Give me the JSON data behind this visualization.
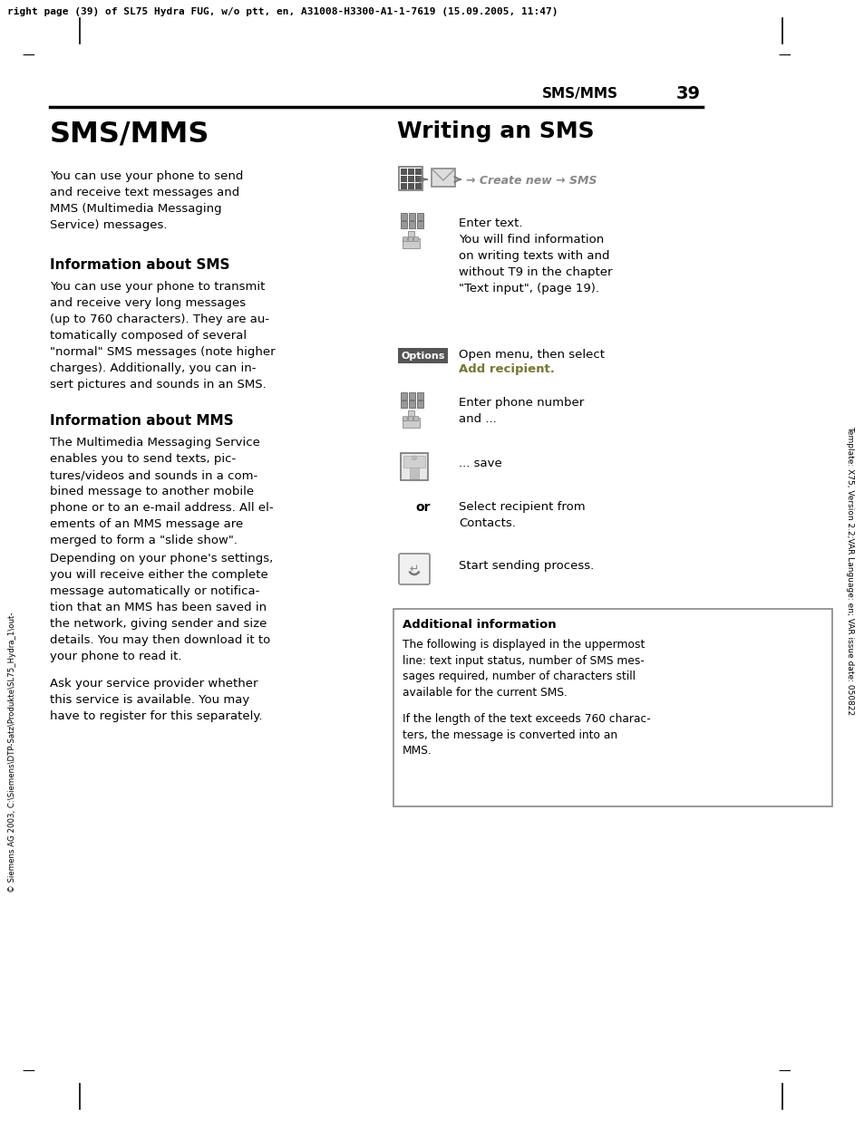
{
  "bg_color": "#ffffff",
  "header_text": "right page (39) of SL75 Hydra FUG, w/o ptt, en, A31008-H3300-A1-1-7619 (15.09.2005, 11:47)",
  "page_section": "SMS/MMS",
  "page_number": "39",
  "rot_right": "Template: X75, Version 2.2;VAR Language: en; VAR issue date: 050822",
  "rot_left": "© Siemens AG 2003, C:\\Siemens\\DTP-Satz\\Produkte\\SL75_Hydra_1\\out-",
  "main_title": "SMS/MMS",
  "intro": "You can use your phone to send\nand receive text messages and\nMMS (​Multimedia ​Messaging\n​Service) messages.",
  "s1_head": "Information about SMS",
  "s1_body": "You can use your phone to transmit\nand receive very long messages\n(up to 760 characters). They are au-\ntomatically composed of several\n\"normal\" SMS messages (note higher\ncharges). Additionally, you can in-\nsert pictures and sounds in an SMS.",
  "s2_head": "Information about MMS",
  "s2_body1": "The ​Multimedia ​Messaging ​Service\nenables you to send texts, pic-\ntures/videos and sounds in a com-\nbined message to another mobile\nphone or to an e-mail address. All el-\nements of an MMS message are\nmerged to form a \"slide show\".",
  "s2_body2": "Depending on your phone's settings,\nyou will receive either the complete\nmessage automatically or notifica-\ntion that an MMS has been saved in\nthe network, giving sender and size\ndetails. You may then download it to\nyour phone to read it.",
  "s2_body3": "Ask your service provider whether\nthis service is available. You may\nhave to register for this separately.",
  "r_title": "Writing an SMS",
  "nav_text": "→ Create new → SMS",
  "r1_text": "Enter text.\nYou will find information\non writing texts with and\nwithout T9 in the chapter\n\"Text input\", (page 19).",
  "r2_btn": "Options",
  "r2_line1": "Open menu, then select",
  "r2_line2": "Add recipient.",
  "r3_text": "Enter phone number\nand ...",
  "r4_text": "... save",
  "r5_label": "or",
  "r5_text": "Select recipient from\nContacts.",
  "r6_text": "Start sending process.",
  "box_title": "Additional information",
  "box_p1": "The following is displayed in the uppermost\nline: text input status, number of SMS mes-\nsages required, number of characters still\navailable for the current SMS.",
  "box_p2": "If the length of the text exceeds 760 charac-\nters, the message is converted into an\nMMS.",
  "gray_color": "#888888",
  "dark_gray": "#555555",
  "options_bg": "#666666",
  "add_recip_color": "#888855"
}
